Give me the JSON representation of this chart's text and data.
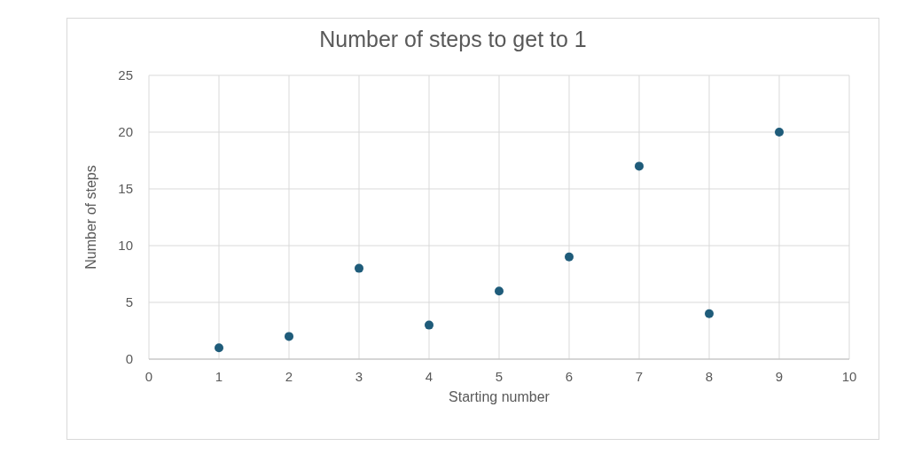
{
  "chart_data": {
    "type": "scatter",
    "title": "Number of steps to get to 1",
    "xlabel": "Starting number",
    "ylabel": "Number of steps",
    "x": [
      1,
      2,
      3,
      4,
      5,
      6,
      7,
      8,
      9
    ],
    "values": [
      1,
      2,
      8,
      3,
      6,
      9,
      17,
      4,
      20
    ],
    "color": "#1f5c7a",
    "marker": "circle",
    "xlim": [
      0,
      10
    ],
    "xticks": [
      0,
      1,
      2,
      3,
      4,
      5,
      6,
      7,
      8,
      9,
      10
    ],
    "ylim": [
      0,
      25
    ],
    "yticks": [
      0,
      5,
      10,
      15,
      20,
      25
    ],
    "grid": true
  }
}
